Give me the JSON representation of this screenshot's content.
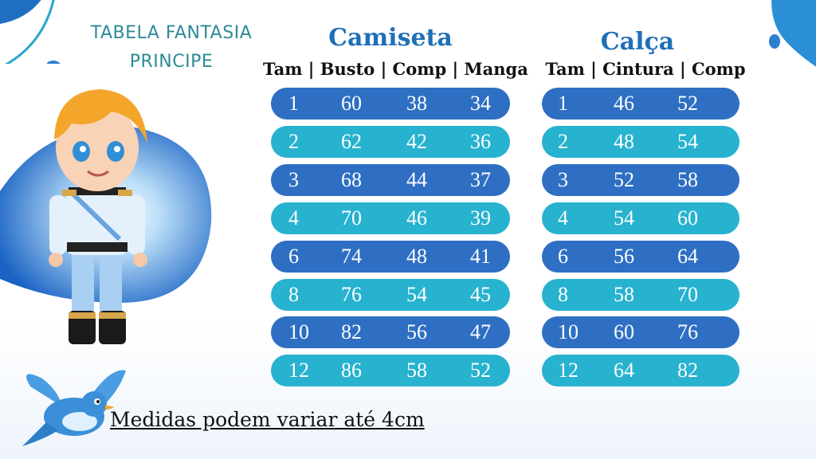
{
  "header": {
    "title_line1": "TABELA FANTASIA",
    "title_line2": "PRINCIPE"
  },
  "camiseta": {
    "title": "Camiseta",
    "header": "Tam | Busto | Comp | Manga",
    "rows": [
      {
        "tam": "1",
        "busto": "60",
        "comp": "38",
        "manga": "34"
      },
      {
        "tam": "2",
        "busto": "62",
        "comp": "42",
        "manga": "36"
      },
      {
        "tam": "3",
        "busto": "68",
        "comp": "44",
        "manga": "37"
      },
      {
        "tam": "4",
        "busto": "70",
        "comp": "46",
        "manga": "39"
      },
      {
        "tam": "6",
        "busto": "74",
        "comp": "48",
        "manga": "41"
      },
      {
        "tam": "8",
        "busto": "76",
        "comp": "54",
        "manga": "45"
      },
      {
        "tam": "10",
        "busto": "82",
        "comp": "56",
        "manga": "47"
      },
      {
        "tam": "12",
        "busto": "86",
        "comp": "58",
        "manga": "52"
      }
    ]
  },
  "calca": {
    "title": "Calça",
    "header": "Tam | Cintura | Comp",
    "rows": [
      {
        "tam": "1",
        "cintura": "46",
        "comp": "52"
      },
      {
        "tam": "2",
        "cintura": "48",
        "comp": "54"
      },
      {
        "tam": "3",
        "cintura": "52",
        "comp": "58"
      },
      {
        "tam": "4",
        "cintura": "54",
        "comp": "60"
      },
      {
        "tam": "6",
        "cintura": "56",
        "comp": "64"
      },
      {
        "tam": "8",
        "cintura": "58",
        "comp": "70"
      },
      {
        "tam": "10",
        "cintura": "60",
        "comp": "76"
      },
      {
        "tam": "12",
        "cintura": "64",
        "comp": "82"
      }
    ]
  },
  "footer": {
    "note": "Medidas podem variar até 4cm"
  },
  "colors": {
    "row_dark": "#2e6fc3",
    "row_light": "#27b2cf",
    "title_teal": "#2c8b97",
    "section_blue": "#1e6fb8"
  },
  "illustrations": {
    "character": "prince-illustration",
    "bird": "bluebird-illustration"
  }
}
